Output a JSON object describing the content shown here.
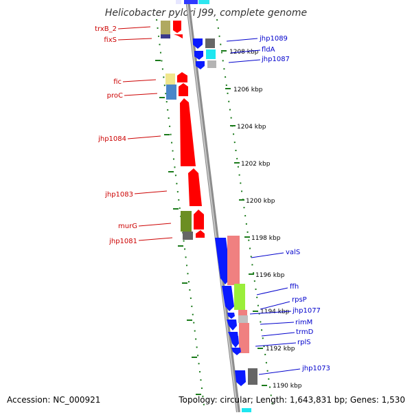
{
  "title": "Helicobacter pylori J99, complete genome",
  "footer": {
    "accession": "Accession: NC_000921",
    "topology": "Topology: circular; Length: 1,643,831 bp; Genes: 1,530"
  },
  "colors": {
    "forward_label": "#cc0000",
    "reverse_label": "#0000cc",
    "backbone": "#8c8c8c",
    "ticks": "#1a7a1a"
  },
  "kbp_ticks": [
    "1208 kbp",
    "1206 kbp",
    "1204 kbp",
    "1202 kbp",
    "1200 kbp",
    "1198 kbp",
    "1196 kbp",
    "1194 kbp",
    "1192 kbp",
    "1190 kbp"
  ],
  "forward_labels": [
    "trxB_2",
    "fixS",
    "fic",
    "proC",
    "jhp1084",
    "jhp1083",
    "murG",
    "jhp1081"
  ],
  "reverse_labels": [
    "jhp1089",
    "fldA",
    "jhp1087",
    "valS",
    "ffh",
    "rpsP",
    "jhp1077",
    "rimM",
    "trmD",
    "rplS",
    "jhp1073"
  ]
}
